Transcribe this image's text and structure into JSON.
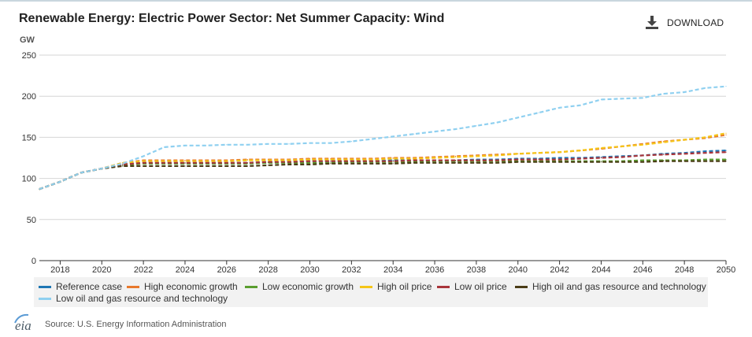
{
  "header": {
    "title": "Renewable Energy: Electric Power Sector: Net Summer Capacity: Wind",
    "download_label": "DOWNLOAD",
    "download_icon": "download-icon"
  },
  "footer": {
    "logo_text": "eia",
    "source": "Source: U.S. Energy Information Administration"
  },
  "chart_data": {
    "type": "line",
    "title": "Renewable Energy: Electric Power Sector: Net Summer Capacity: Wind",
    "ylabel": "GW",
    "ylim": [
      0,
      250
    ],
    "yticks": [
      0,
      50,
      100,
      150,
      200,
      250
    ],
    "xlim": [
      2017,
      2050
    ],
    "xticks": [
      2018,
      2020,
      2022,
      2024,
      2026,
      2028,
      2030,
      2032,
      2034,
      2036,
      2038,
      2040,
      2042,
      2044,
      2046,
      2048,
      2050
    ],
    "grid": true,
    "legend_position": "bottom",
    "line_style": "dashed",
    "x": [
      2017,
      2018,
      2019,
      2020,
      2021,
      2022,
      2023,
      2024,
      2025,
      2026,
      2027,
      2028,
      2029,
      2030,
      2031,
      2032,
      2033,
      2034,
      2035,
      2036,
      2037,
      2038,
      2039,
      2040,
      2041,
      2042,
      2043,
      2044,
      2045,
      2046,
      2047,
      2048,
      2049,
      2050
    ],
    "series": [
      {
        "name": "Reference case",
        "color": "#1f77b4",
        "values": [
          87,
          96,
          107,
          112,
          117,
          119,
          119,
          119,
          119,
          119,
          119,
          120,
          120,
          121,
          121,
          121,
          121,
          122,
          122,
          122,
          122,
          123,
          123,
          124,
          124,
          125,
          125,
          126,
          127,
          128,
          130,
          131,
          133,
          134
        ]
      },
      {
        "name": "High economic growth",
        "color": "#e8792c",
        "values": [
          87,
          96,
          107,
          112,
          119,
          122,
          122,
          122,
          122,
          122,
          123,
          123,
          123,
          124,
          124,
          124,
          124,
          125,
          125,
          126,
          127,
          128,
          129,
          130,
          131,
          132,
          134,
          136,
          139,
          142,
          145,
          147,
          149,
          153
        ]
      },
      {
        "name": "Low economic growth",
        "color": "#5a9e2f",
        "values": [
          87,
          96,
          107,
          112,
          116,
          118,
          118,
          118,
          118,
          118,
          118,
          119,
          119,
          119,
          119,
          120,
          120,
          120,
          120,
          121,
          121,
          121,
          121,
          121,
          121,
          121,
          121,
          121,
          121,
          122,
          122,
          122,
          123,
          123
        ]
      },
      {
        "name": "High oil price",
        "color": "#f5c518",
        "values": [
          87,
          96,
          107,
          112,
          119,
          121,
          121,
          121,
          121,
          121,
          122,
          122,
          122,
          123,
          123,
          123,
          123,
          124,
          124,
          125,
          126,
          127,
          128,
          130,
          131,
          132,
          134,
          137,
          139,
          141,
          144,
          147,
          150,
          155
        ]
      },
      {
        "name": "Low oil price",
        "color": "#a8343a",
        "values": [
          87,
          96,
          107,
          112,
          117,
          119,
          119,
          119,
          119,
          119,
          119,
          120,
          120,
          121,
          121,
          121,
          121,
          121,
          122,
          122,
          122,
          122,
          122,
          123,
          123,
          123,
          124,
          125,
          126,
          128,
          129,
          130,
          131,
          132
        ]
      },
      {
        "name": "High oil and gas resource and technology",
        "color": "#4a3c16",
        "values": [
          87,
          96,
          107,
          112,
          115,
          115,
          115,
          115,
          115,
          115,
          115,
          116,
          117,
          117,
          118,
          118,
          118,
          118,
          119,
          119,
          119,
          119,
          119,
          120,
          120,
          120,
          120,
          120,
          120,
          120,
          121,
          121,
          121,
          121
        ]
      },
      {
        "name": "Low oil and gas resource and technology",
        "color": "#8fd0f0",
        "values": [
          87,
          96,
          107,
          112,
          118,
          127,
          138,
          140,
          140,
          141,
          141,
          142,
          142,
          143,
          143,
          145,
          148,
          151,
          154,
          157,
          160,
          164,
          168,
          174,
          180,
          186,
          189,
          196,
          197,
          198,
          203,
          205,
          210,
          212
        ]
      }
    ]
  }
}
